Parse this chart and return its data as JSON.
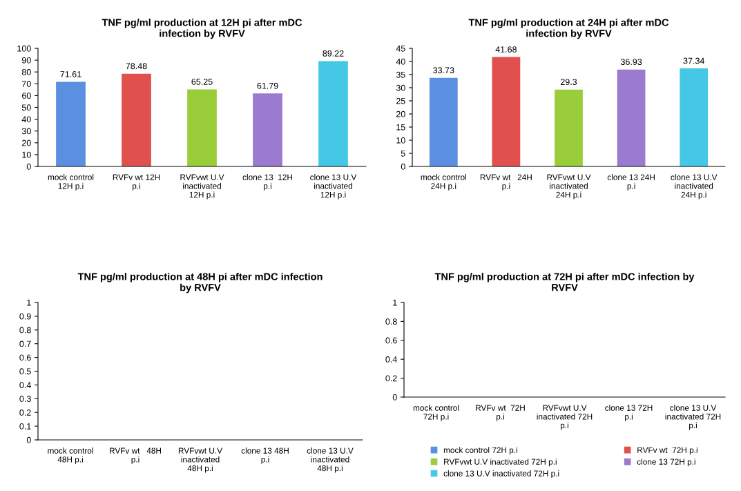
{
  "chart_data": [
    {
      "type": "bar",
      "title": "TNF pg/ml production at 12H pi after mDC\ninfection by RVFV",
      "categories": [
        "mock control\n12H p.i",
        "RVFv wt 12H\np.i",
        "RVFvwt U.V\ninactivated\n12H p.i",
        "clone 13  12H\np.i",
        "clone 13 U.V\ninactivated\n12H p.i"
      ],
      "values": [
        71.61,
        78.48,
        65.25,
        61.79,
        89.22
      ],
      "colors": [
        "#5b8fe0",
        "#e0504e",
        "#9acd3a",
        "#9b7bd0",
        "#45c8e6"
      ],
      "ylim": [
        0,
        100
      ],
      "yticks": [
        0,
        10,
        20,
        30,
        40,
        50,
        60,
        70,
        80,
        90,
        100
      ],
      "data_labels": true,
      "grid": false
    },
    {
      "type": "bar",
      "title": "TNF pg/ml production at 24H pi after mDC\ninfection by RVFV",
      "categories": [
        "mock control\n24H p.i",
        "RVFv wt   24H\np.i",
        "RVFvwt U.V\ninactivated\n24H p.i",
        "clone 13 24H\np.i",
        "clone 13 U.V\ninactivated\n24H p.i"
      ],
      "values": [
        33.73,
        41.68,
        29.3,
        36.93,
        37.34
      ],
      "colors": [
        "#5b8fe0",
        "#e0504e",
        "#9acd3a",
        "#9b7bd0",
        "#45c8e6"
      ],
      "ylim": [
        0,
        45
      ],
      "yticks": [
        0,
        5,
        10,
        15,
        20,
        25,
        30,
        35,
        40,
        45
      ],
      "data_labels": true,
      "grid": false
    },
    {
      "type": "bar",
      "title": "TNF pg/ml production at 48H pi after mDC infection\nby RVFV",
      "categories": [
        "mock control\n48H p.i",
        "RVFv wt   48H\np.i",
        "RVFvwt U.V\ninactivated\n48H p.i",
        "clone 13 48H\np.i",
        "clone 13 U.V\ninactivated\n48H p.i"
      ],
      "values": [
        null,
        null,
        null,
        null,
        null
      ],
      "ylim": [
        0,
        1
      ],
      "yticks": [
        0,
        0.1,
        0.2,
        0.3,
        0.4,
        0.5,
        0.6,
        0.7,
        0.8,
        0.9,
        1
      ],
      "grid": false
    },
    {
      "type": "bar",
      "title": "TNF pg/ml production at 72H pi after mDC infection by\nRVFV",
      "categories": [
        "mock control\n72H p.i",
        "RVFv wt  72H\np.i",
        "RVFvwt U.V\ninactivated 72H\np.i",
        "clone 13 72H\np.i",
        "clone 13 U.V\ninactivated 72H\np.i"
      ],
      "series": [
        {
          "name": "mock control 72H p.i",
          "color": "#5b8fe0",
          "values": [
            null,
            null,
            null,
            null,
            null
          ]
        },
        {
          "name": "RVFv wt  72H p.i",
          "color": "#e0504e",
          "values": [
            null,
            null,
            null,
            null,
            null
          ]
        },
        {
          "name": "RVFvwt U.V inactivated 72H p.i",
          "color": "#9acd3a",
          "values": [
            null,
            null,
            null,
            null,
            null
          ]
        },
        {
          "name": "clone 13 72H p.i",
          "color": "#9b7bd0",
          "values": [
            null,
            null,
            null,
            null,
            null
          ]
        },
        {
          "name": "clone 13 U.V inactivated 72H p.i",
          "color": "#45c8e6",
          "values": [
            null,
            null,
            null,
            null,
            null
          ]
        }
      ],
      "ylim": [
        0,
        1
      ],
      "yticks": [
        0,
        0.2,
        0.4,
        0.6,
        0.8,
        1
      ],
      "legend": "bottom",
      "grid": false
    }
  ]
}
